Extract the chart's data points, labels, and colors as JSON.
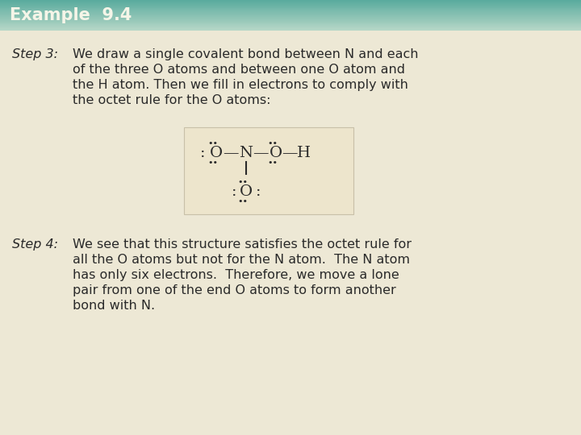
{
  "title": "Example  9.4",
  "title_bg_color_top": "#5aab9e",
  "title_bg_color_bot": "#b8d8c8",
  "bg_color": "#ede8d5",
  "title_text_color": "#f5f5e8",
  "body_text_color": "#2a2a2a",
  "step3_label": "Step 3:",
  "step3_text_lines": [
    "We draw a single covalent bond between N and each",
    "of the three O atoms and between one O atom and",
    "the H atom. Then we fill in electrons to comply with",
    "the octet rule for the O atoms:"
  ],
  "step4_label": "Step 4:",
  "step4_text_lines": [
    "We see that this structure satisfies the octet rule for",
    "all the O atoms but not for the N atom.  The N atom",
    "has only six electrons.  Therefore, we move a lone",
    "pair from one of the end O atoms to form another",
    "bond with N."
  ],
  "diagram_bg": "#ede8d5",
  "diagram_border_color": "#c8c0a8",
  "font_size_title": 15,
  "font_size_step_label": 11.5,
  "font_size_body": 11.5,
  "font_size_diagram": 14,
  "font_size_dots": 8
}
